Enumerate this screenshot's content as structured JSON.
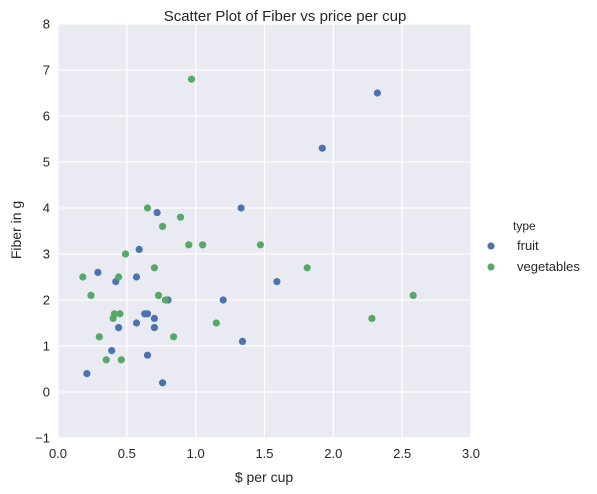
{
  "chart_data": {
    "type": "scatter",
    "title": "Scatter Plot of Fiber vs price per cup",
    "xlabel": "$ per cup",
    "ylabel": "Fiber in g",
    "xlim": [
      0.0,
      3.0
    ],
    "ylim": [
      -1,
      8
    ],
    "x_ticks": [
      "0.0",
      "0.5",
      "1.0",
      "1.5",
      "2.0",
      "2.5",
      "3.0"
    ],
    "y_ticks": [
      "−1",
      "0",
      "1",
      "2",
      "3",
      "4",
      "5",
      "6",
      "7",
      "8"
    ],
    "grid": true,
    "legend": {
      "title": "type",
      "placement": "right-outside"
    },
    "series": [
      {
        "name": "fruit",
        "color": "#4c72b0",
        "points": [
          [
            0.21,
            0.4
          ],
          [
            0.29,
            2.6
          ],
          [
            0.39,
            0.9
          ],
          [
            0.42,
            2.4
          ],
          [
            0.44,
            1.4
          ],
          [
            0.57,
            2.5
          ],
          [
            0.57,
            1.5
          ],
          [
            0.59,
            3.1
          ],
          [
            0.63,
            1.7
          ],
          [
            0.65,
            1.7
          ],
          [
            0.65,
            0.8
          ],
          [
            0.7,
            1.6
          ],
          [
            0.7,
            1.4
          ],
          [
            0.72,
            3.9
          ],
          [
            0.76,
            0.2
          ],
          [
            0.8,
            2.0
          ],
          [
            1.2,
            2.0
          ],
          [
            1.33,
            4.0
          ],
          [
            1.34,
            1.1
          ],
          [
            1.59,
            2.4
          ],
          [
            1.92,
            5.3
          ],
          [
            2.32,
            6.5
          ]
        ]
      },
      {
        "name": "vegetables",
        "color": "#55a868",
        "points": [
          [
            0.18,
            2.5
          ],
          [
            0.24,
            2.1
          ],
          [
            0.3,
            1.2
          ],
          [
            0.35,
            0.7
          ],
          [
            0.4,
            1.6
          ],
          [
            0.41,
            1.7
          ],
          [
            0.44,
            2.5
          ],
          [
            0.45,
            1.7
          ],
          [
            0.46,
            0.7
          ],
          [
            0.49,
            3.0
          ],
          [
            0.65,
            4.0
          ],
          [
            0.7,
            2.7
          ],
          [
            0.73,
            2.1
          ],
          [
            0.76,
            3.6
          ],
          [
            0.78,
            2.0
          ],
          [
            0.84,
            1.2
          ],
          [
            0.89,
            3.8
          ],
          [
            0.95,
            3.2
          ],
          [
            0.97,
            6.8
          ],
          [
            1.05,
            3.2
          ],
          [
            1.15,
            1.5
          ],
          [
            1.47,
            3.2
          ],
          [
            1.81,
            2.7
          ],
          [
            2.28,
            1.6
          ],
          [
            2.58,
            2.1
          ]
        ]
      }
    ]
  }
}
